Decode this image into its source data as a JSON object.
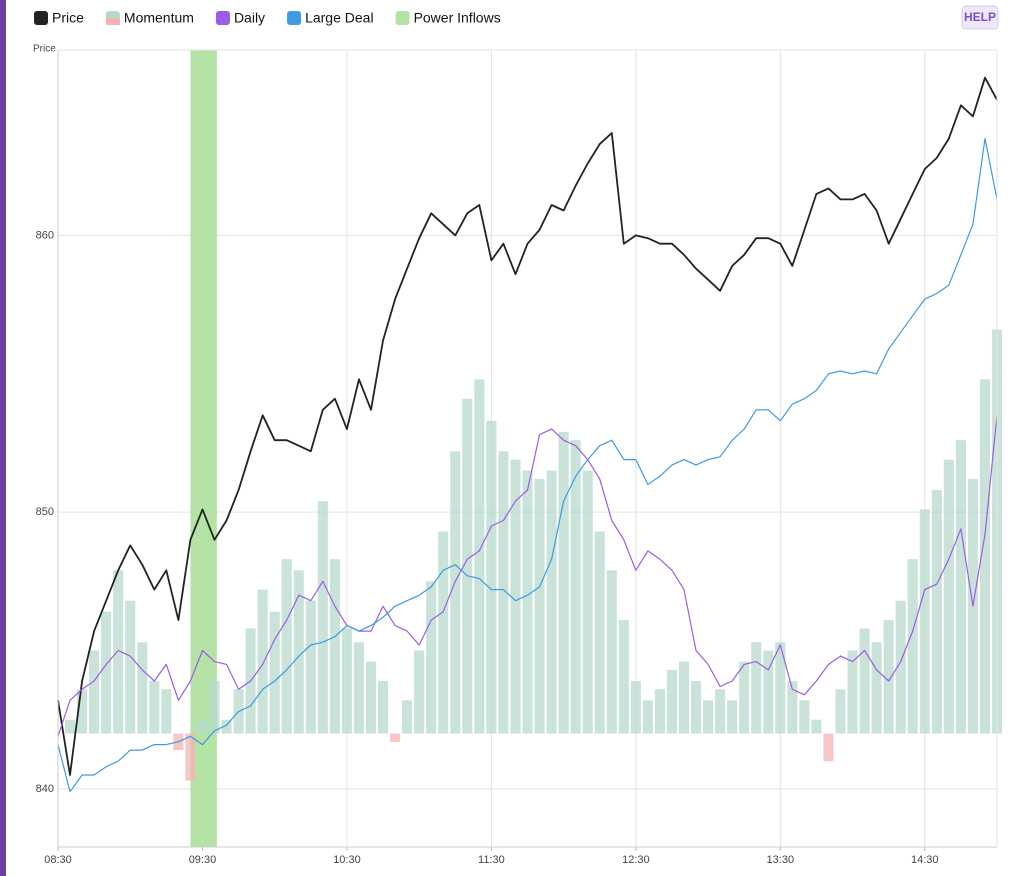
{
  "help": "HELP",
  "chart_data": {
    "type": "line",
    "y_label": "Price",
    "x": [
      "08:30",
      "08:35",
      "08:40",
      "08:45",
      "08:50",
      "08:55",
      "09:00",
      "09:05",
      "09:10",
      "09:15",
      "09:20",
      "09:25",
      "09:30",
      "09:35",
      "09:40",
      "09:45",
      "09:50",
      "09:55",
      "10:00",
      "10:05",
      "10:10",
      "10:15",
      "10:20",
      "10:25",
      "10:30",
      "10:35",
      "10:40",
      "10:45",
      "10:50",
      "10:55",
      "11:00",
      "11:05",
      "11:10",
      "11:15",
      "11:20",
      "11:25",
      "11:30",
      "11:35",
      "11:40",
      "11:45",
      "11:50",
      "11:55",
      "12:00",
      "12:05",
      "12:10",
      "12:15",
      "12:20",
      "12:25",
      "12:30",
      "12:35",
      "12:40",
      "12:45",
      "12:50",
      "12:55",
      "13:00",
      "13:05",
      "13:10",
      "13:15",
      "13:20",
      "13:25",
      "13:30",
      "13:35",
      "13:40",
      "13:45",
      "13:50",
      "13:55",
      "14:00",
      "14:05",
      "14:10",
      "14:15",
      "14:20",
      "14:25",
      "14:30",
      "14:35",
      "14:40",
      "14:45",
      "14:50",
      "14:55",
      "15:00"
    ],
    "xlim": [
      "08:30",
      "15:00"
    ],
    "xticks": [
      "08:30",
      "09:30",
      "10:30",
      "11:30",
      "12:30",
      "13:30",
      "14:30"
    ],
    "ylim": [
      837.9,
      866.7
    ],
    "yticks": [
      840,
      850,
      860
    ],
    "grid": true,
    "series": [
      {
        "name": "Momentum",
        "type": "bar",
        "color": "#b7d9cc",
        "negative_color": "#f4b3b3",
        "base": 842,
        "values": [
          842.0,
          842.5,
          843.6,
          845.0,
          846.4,
          847.9,
          846.8,
          845.3,
          843.9,
          843.6,
          841.4,
          840.3,
          842.5,
          843.9,
          842.5,
          843.6,
          845.8,
          847.2,
          846.4,
          848.3,
          847.9,
          846.8,
          850.4,
          848.3,
          845.8,
          845.3,
          844.6,
          843.9,
          841.7,
          843.2,
          845.0,
          847.5,
          849.3,
          852.2,
          854.1,
          854.8,
          853.3,
          852.2,
          851.9,
          851.5,
          851.2,
          851.5,
          852.9,
          852.6,
          851.5,
          849.3,
          847.9,
          846.1,
          843.9,
          843.2,
          843.6,
          844.3,
          844.6,
          843.9,
          843.2,
          843.6,
          843.2,
          844.6,
          845.3,
          845.0,
          845.3,
          843.9,
          843.2,
          842.5,
          841.0,
          843.6,
          845.0,
          845.8,
          845.3,
          846.1,
          846.8,
          848.3,
          850.1,
          850.8,
          851.9,
          852.6,
          851.2,
          854.8,
          856.6
        ]
      },
      {
        "name": "Price",
        "type": "line",
        "color": "#222222",
        "width": 1.8,
        "values": [
          843.2,
          840.5,
          843.9,
          845.7,
          846.8,
          847.9,
          848.8,
          848.1,
          847.2,
          847.9,
          846.1,
          849.0,
          850.1,
          849.0,
          849.7,
          850.8,
          852.2,
          853.5,
          852.6,
          852.6,
          852.4,
          852.2,
          853.7,
          854.1,
          853.0,
          854.8,
          853.7,
          856.2,
          857.7,
          858.8,
          859.9,
          860.8,
          860.4,
          860.0,
          860.8,
          861.1,
          859.1,
          859.7,
          858.6,
          859.7,
          860.2,
          861.1,
          860.9,
          861.8,
          862.6,
          863.3,
          863.7,
          859.7,
          860.0,
          859.9,
          859.7,
          859.7,
          859.3,
          858.8,
          858.4,
          858.0,
          858.9,
          859.3,
          859.9,
          859.9,
          859.7,
          858.9,
          860.2,
          861.5,
          861.7,
          861.3,
          861.3,
          861.5,
          860.9,
          859.7,
          860.6,
          861.5,
          862.4,
          862.8,
          863.5,
          864.7,
          864.3,
          865.7,
          864.9
        ]
      },
      {
        "name": "Daily",
        "type": "line",
        "color": "#9b5de5",
        "width": 1.2,
        "values": [
          841.9,
          843.2,
          843.6,
          843.9,
          844.5,
          845.0,
          844.8,
          844.3,
          843.9,
          844.5,
          843.2,
          843.9,
          845.0,
          844.6,
          844.5,
          843.6,
          843.9,
          844.5,
          845.4,
          846.1,
          847.0,
          846.8,
          847.5,
          846.6,
          845.9,
          845.7,
          845.7,
          846.6,
          845.9,
          845.7,
          845.2,
          846.1,
          846.4,
          847.5,
          848.3,
          848.6,
          849.5,
          849.7,
          850.4,
          850.8,
          852.8,
          853.0,
          852.6,
          852.4,
          851.9,
          851.2,
          849.7,
          849.0,
          847.9,
          848.6,
          848.3,
          847.9,
          847.2,
          845.0,
          844.5,
          843.7,
          843.9,
          844.5,
          844.6,
          844.3,
          845.2,
          843.6,
          843.4,
          843.9,
          844.5,
          844.8,
          844.6,
          845.0,
          844.3,
          843.9,
          844.6,
          845.7,
          847.2,
          847.4,
          848.3,
          849.4,
          846.6,
          849.2,
          853.5
        ]
      },
      {
        "name": "Large Deal",
        "type": "line",
        "color": "#3d9be0",
        "width": 1.2,
        "values": [
          841.6,
          839.9,
          840.5,
          840.5,
          840.8,
          841.0,
          841.4,
          841.4,
          841.6,
          841.6,
          841.7,
          841.9,
          841.6,
          842.1,
          842.3,
          842.8,
          843.0,
          843.6,
          843.9,
          844.3,
          844.8,
          845.2,
          845.3,
          845.5,
          845.9,
          845.7,
          845.9,
          846.2,
          846.6,
          846.8,
          847.0,
          847.3,
          847.9,
          848.1,
          847.7,
          847.6,
          847.2,
          847.2,
          846.8,
          847.0,
          847.3,
          848.3,
          850.4,
          851.3,
          851.9,
          852.4,
          852.6,
          851.9,
          851.9,
          851.0,
          851.3,
          851.7,
          851.9,
          851.7,
          851.9,
          852.0,
          852.6,
          853.0,
          853.7,
          853.7,
          853.3,
          853.9,
          854.1,
          854.4,
          855.0,
          855.1,
          855.0,
          855.1,
          855.0,
          855.9,
          856.5,
          857.1,
          857.7,
          857.9,
          858.2,
          859.3,
          860.4,
          863.5,
          861.3
        ]
      }
    ],
    "bands": [
      {
        "name": "Power Inflows",
        "color": "#b5e3a6",
        "start": "09:25",
        "end": "09:36"
      }
    ]
  }
}
